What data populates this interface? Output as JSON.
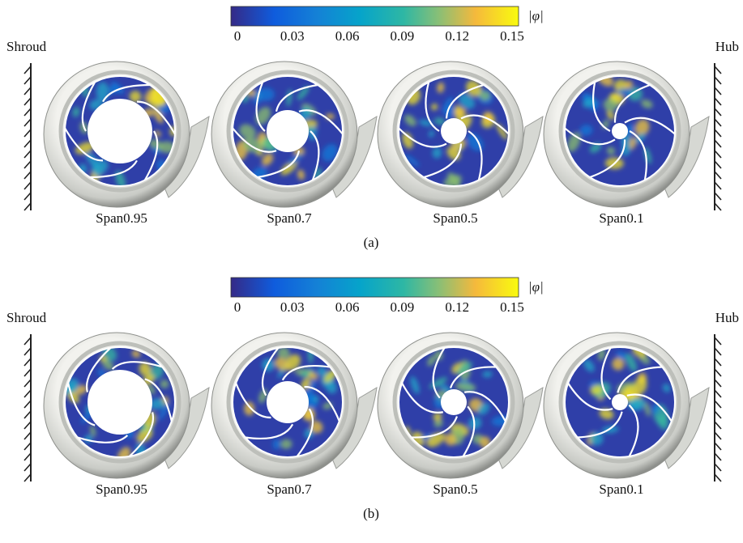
{
  "panels": [
    {
      "colorbar": {
        "label": "|φ|",
        "ticks": [
          "0",
          "0.03",
          "0.06",
          "0.09",
          "0.12",
          "0.15"
        ]
      },
      "left_label": "Shroud",
      "right_label": "Hub",
      "spans": [
        "Span0.95",
        "Span0.7",
        "Span0.5",
        "Span0.1"
      ],
      "caption": "(a)"
    },
    {
      "colorbar": {
        "label": "|φ|",
        "ticks": [
          "0",
          "0.03",
          "0.06",
          "0.09",
          "0.12",
          "0.15"
        ]
      },
      "left_label": "Shroud",
      "right_label": "Hub",
      "spans": [
        "Span0.95",
        "Span0.7",
        "Span0.5",
        "Span0.1"
      ],
      "caption": "(b)"
    }
  ]
}
